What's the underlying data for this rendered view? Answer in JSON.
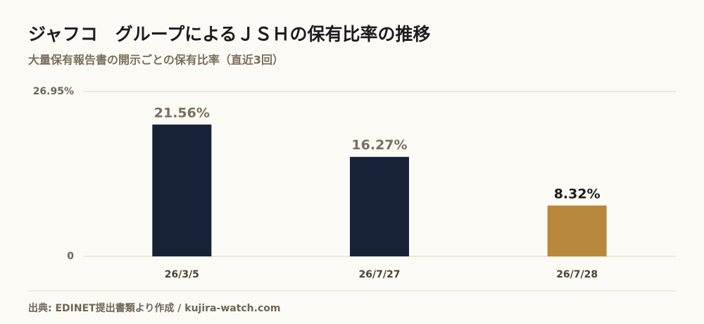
{
  "chart_data": {
    "type": "bar",
    "title": "ジャフコ　グループによるＪＳＨの保有比率の推移",
    "subtitle": "大量保有報告書の開示ごとの保有比率（直近3回）",
    "categories": [
      "26/3/5",
      "26/7/27",
      "26/7/28"
    ],
    "values": [
      21.56,
      16.27,
      8.32
    ],
    "value_labels": [
      "21.56%",
      "16.27%",
      "8.32%"
    ],
    "colors": [
      "#172239",
      "#172239",
      "#b8893c"
    ],
    "value_label_colors": [
      "#7a6e5f",
      "#7a6e5f",
      "#1c1c1c"
    ],
    "ylim": [
      0,
      26.95
    ],
    "yticks": [
      0,
      {
        "value": 26.95,
        "label": "26.95%"
      }
    ],
    "grid": true,
    "source": "出典: EDINET提出書類より作成 / kujira-watch.com"
  }
}
